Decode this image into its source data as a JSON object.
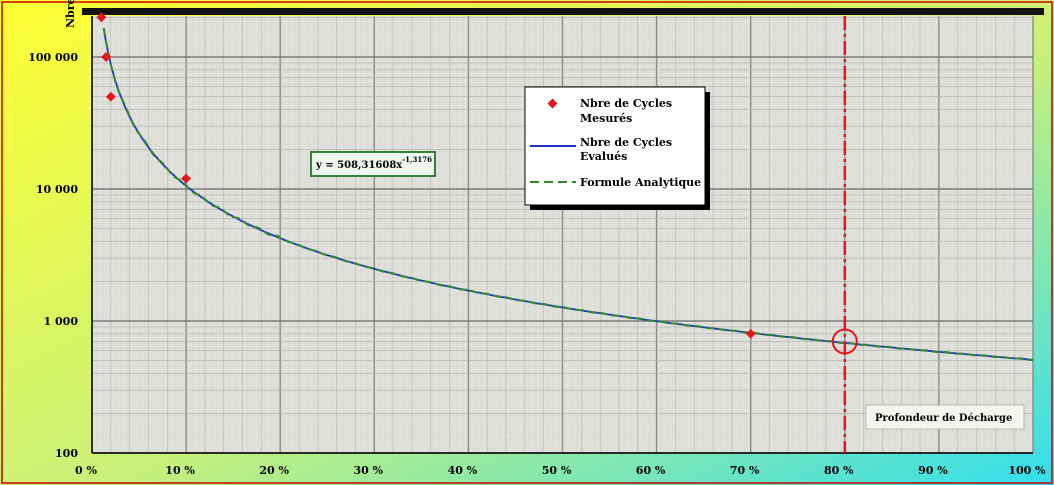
{
  "chart_data": {
    "type": "line",
    "title": "",
    "xlabel": "Profondeur de Décharge",
    "ylabel": "Nbre",
    "x_scale": "linear",
    "y_scale": "log",
    "xlim": [
      0,
      100
    ],
    "ylim": [
      100,
      300000
    ],
    "grid": true,
    "x_ticks": [
      "0 %",
      "10 %",
      "20 %",
      "30 %",
      "40 %",
      "50 %",
      "60 %",
      "70 %",
      "80 %",
      "90 %",
      "100 %"
    ],
    "y_ticks": [
      {
        "value": 100,
        "label": "100"
      },
      {
        "value": 1000,
        "label": "1 000"
      },
      {
        "value": 10000,
        "label": "10 000"
      },
      {
        "value": 100000,
        "label": "100 000"
      }
    ],
    "legend_placement": "upper center",
    "series": [
      {
        "name": "Nbre de Cycles Mesurés",
        "kind": "markers",
        "color": "#e8141c",
        "points": [
          {
            "x": 1,
            "y": 200000
          },
          {
            "x": 1.5,
            "y": 100000
          },
          {
            "x": 2,
            "y": 50000
          },
          {
            "x": 10,
            "y": 12000
          },
          {
            "x": 70,
            "y": 800
          }
        ]
      },
      {
        "name": "Nbre de Cycles Evalués",
        "kind": "line",
        "color": "#2233cc",
        "formula": {
          "a": 508.31608,
          "b": -1.3176
        },
        "x_range": [
          1,
          100
        ]
      },
      {
        "name": "Formule Analytique",
        "kind": "dashed-line",
        "color": "#2e8b2e",
        "formula": {
          "a": 508.31608,
          "b": -1.3176
        },
        "x_range": [
          1,
          100
        ]
      }
    ],
    "annotations": {
      "equation_prefix": "y = 508,31608x",
      "equation_exponent": "-1,3176",
      "vline_x": 80,
      "vline_color": "#e8141c",
      "circle_at": {
        "x": 80,
        "y": 700
      },
      "vline_label": "Profondeur de Décharge"
    },
    "background": {
      "left_gradient": [
        "#ffff33",
        "#33ddee"
      ],
      "right_gradient": [
        "#ffff33",
        "#33ddee"
      ],
      "plot_fill": "#e2e2dc",
      "frame_border": "#cc0000"
    }
  }
}
